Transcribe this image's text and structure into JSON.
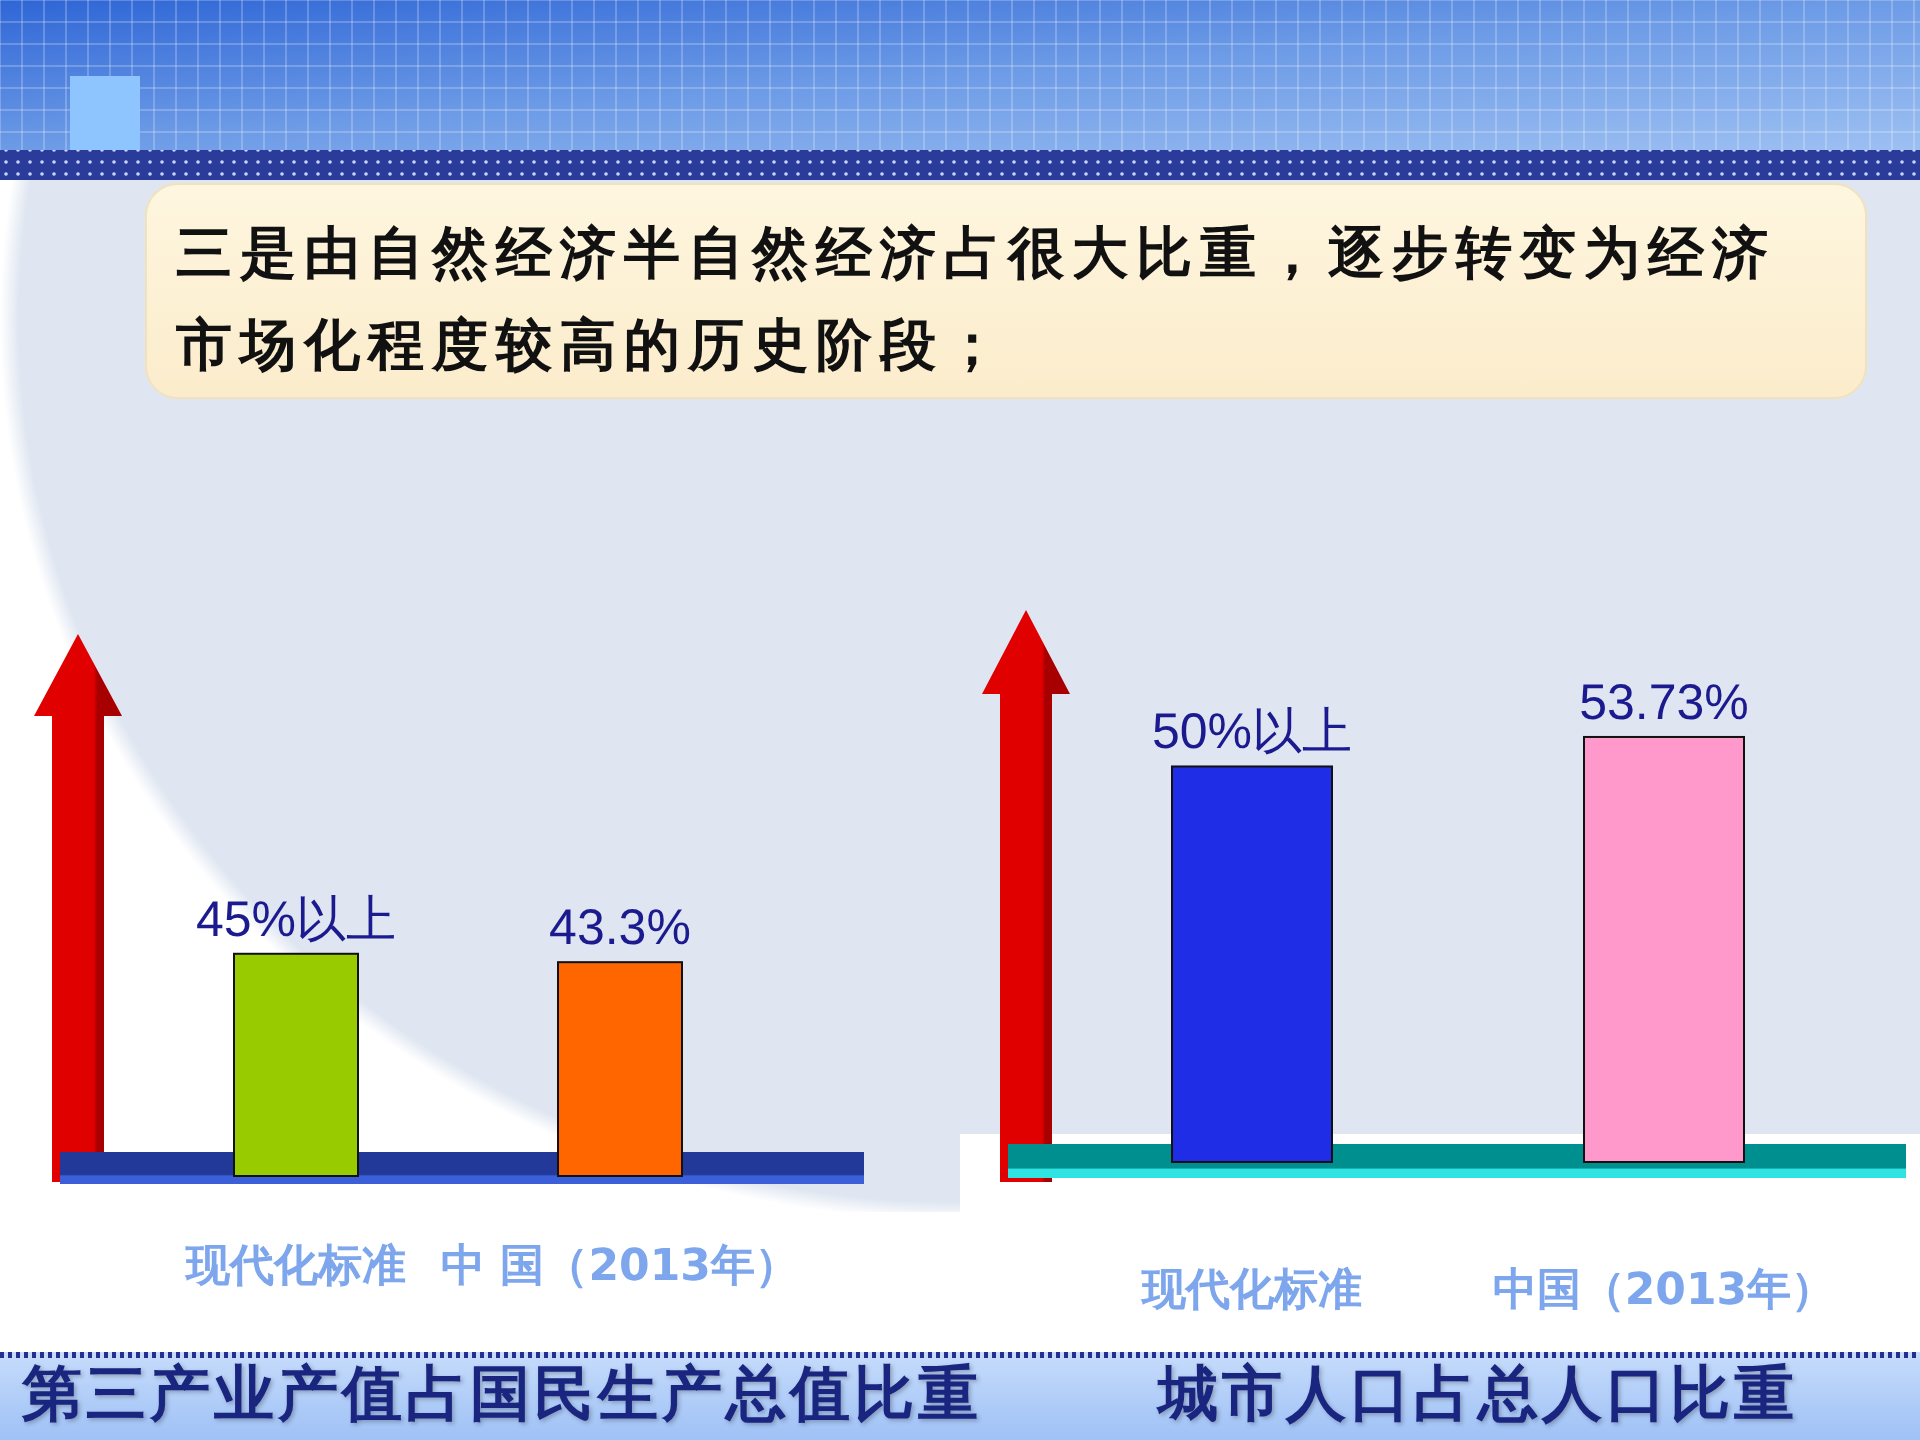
{
  "chart_data": [
    {
      "type": "other",
      "title": "三是由自然经济半自然经济占很大比重，逐步转变为经济市场化程度较高的历史阶段；"
    },
    {
      "type": "bar",
      "title": "第三产业产值占国民生产总值比重",
      "categories": [
        "现代化标准",
        "中 国（2013年）"
      ],
      "values": [
        45,
        43.3
      ],
      "colors": [
        "#99cc00",
        "#ff6600"
      ],
      "value_labels": [
        "45%以上",
        "43.3%"
      ]
    },
    {
      "type": "bar",
      "title": "城市人口占总人口比重",
      "categories": [
        "现代化标准",
        "中国（2013年）"
      ],
      "values": [
        50,
        53.73
      ],
      "colors": [
        "#1f2ee6",
        "#ff99cc"
      ],
      "value_labels": [
        "50%以上",
        "53.73%"
      ]
    }
  ]
}
